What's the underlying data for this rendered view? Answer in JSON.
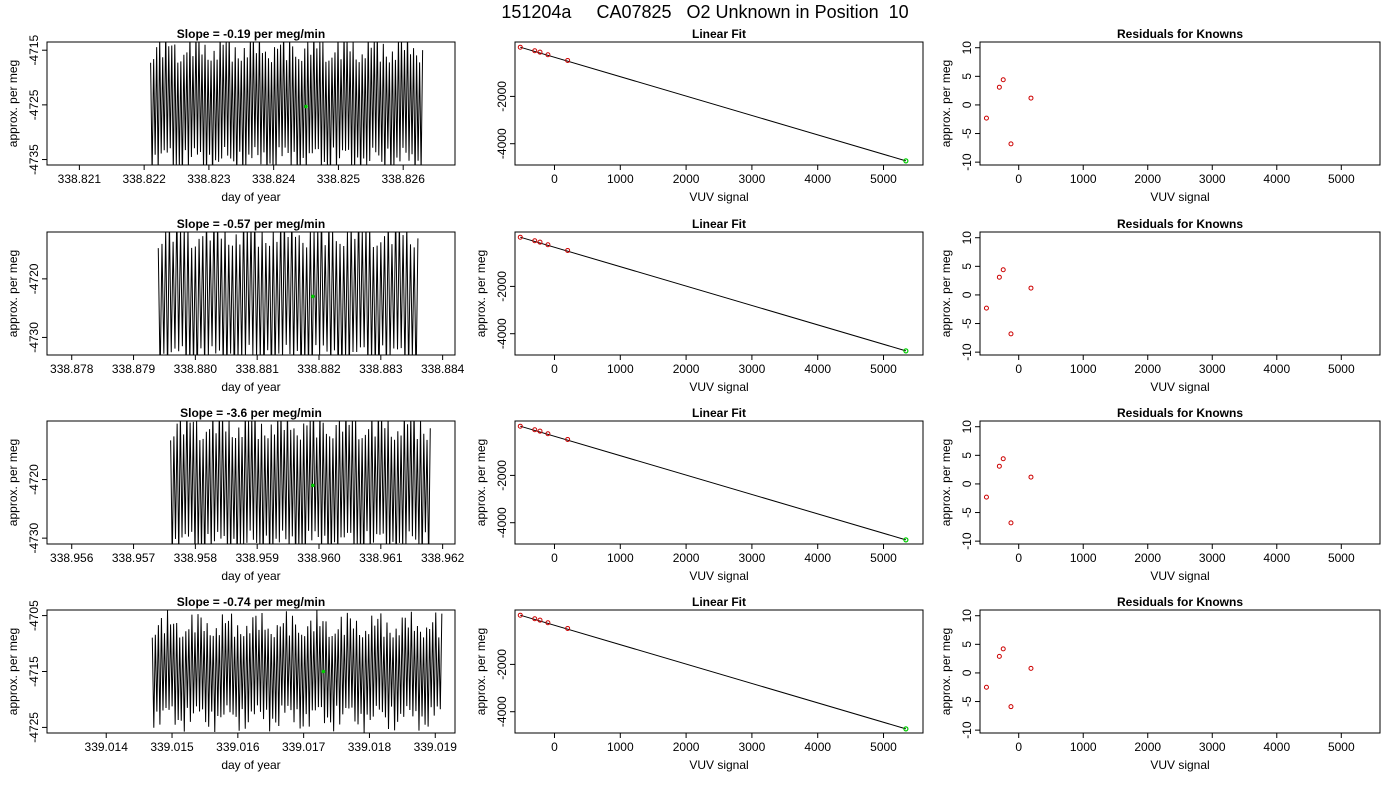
{
  "figure_title": "151204a     CA07825   O2 Unknown in Position  10",
  "colors": {
    "trace": "#000000",
    "unknown_point": "#00cc00",
    "residual_point": "#cc0000",
    "axis": "#000000"
  },
  "chart_data": [
    {
      "type": "line",
      "panel": "time-series",
      "title": "Slope =  -0.19  per meg/min",
      "xlabel": "day of year",
      "ylabel": "approx. per meg",
      "xlim": [
        338.8205,
        338.8268
      ],
      "ylim": [
        -4736,
        -4713.5
      ],
      "xticks": [
        "338.821",
        "338.822",
        "338.823",
        "338.824",
        "338.825",
        "338.826"
      ],
      "yticks": [
        "-4715",
        "-4725",
        "-4735"
      ],
      "x_range": [
        338.8221,
        338.8263
      ],
      "oscillation": {
        "center": -4725,
        "amplitude": 14,
        "cycles": 90
      },
      "unknown_mean": {
        "x": 338.8245,
        "y": -4725.3
      }
    },
    {
      "type": "scatter",
      "panel": "linear-fit",
      "title": "Linear Fit",
      "xlabel": "VUV signal",
      "ylabel": "",
      "xlim": [
        -600,
        5600
      ],
      "ylim": [
        -4900,
        300
      ],
      "xticks": [
        "0",
        "1000",
        "2000",
        "3000",
        "4000",
        "5000"
      ],
      "yticks": [
        "-2000",
        "-4000"
      ],
      "knowns": {
        "x": [
          -520,
          -300,
          -220,
          -100,
          200
        ],
        "y": [
          80,
          -70,
          -130,
          -240,
          -480
        ]
      },
      "fit_line": {
        "x": [
          -520,
          5340
        ],
        "y": [
          80,
          -4725
        ]
      },
      "unknown": {
        "x": 5340,
        "y": -4725
      }
    },
    {
      "type": "scatter",
      "panel": "residuals",
      "title": "Residuals for Knowns",
      "xlabel": "VUV signal",
      "ylabel": "approx. per meg",
      "xlim": [
        -600,
        5600
      ],
      "ylim": [
        -10.5,
        11
      ],
      "xticks": [
        "0",
        "1000",
        "2000",
        "3000",
        "4000",
        "5000"
      ],
      "yticks": [
        "10",
        "5",
        "0",
        "-5",
        "-10"
      ],
      "x": [
        -500,
        -300,
        -240,
        -120,
        190
      ],
      "y": [
        -2.3,
        3.1,
        4.4,
        -6.8,
        1.2
      ]
    },
    {
      "type": "line",
      "panel": "time-series",
      "title": "Slope =  -0.57  per meg/min",
      "xlabel": "day of year",
      "ylabel": "approx. per meg",
      "xlim": [
        338.8776,
        338.8842
      ],
      "ylim": [
        -4733,
        -4712
      ],
      "xticks": [
        "338.878",
        "338.879",
        "338.880",
        "338.881",
        "338.882",
        "338.883",
        "338.884"
      ],
      "yticks": [
        "-4720",
        "-4730"
      ],
      "x_range": [
        338.8794,
        338.8836
      ],
      "oscillation": {
        "center": -4723,
        "amplitude": 15,
        "cycles": 70
      },
      "unknown_mean": {
        "x": 338.8819,
        "y": -4723
      }
    },
    {
      "type": "scatter",
      "panel": "linear-fit",
      "title": "Linear Fit",
      "xlabel": "VUV signal",
      "ylabel": "approx. per meg",
      "xlim": [
        -600,
        5600
      ],
      "ylim": [
        -4900,
        300
      ],
      "xticks": [
        "0",
        "1000",
        "2000",
        "3000",
        "4000",
        "5000"
      ],
      "yticks": [
        "-2000",
        "-4000"
      ],
      "knowns": {
        "x": [
          -520,
          -300,
          -220,
          -100,
          200
        ],
        "y": [
          80,
          -70,
          -130,
          -240,
          -480
        ]
      },
      "fit_line": {
        "x": [
          -520,
          5340
        ],
        "y": [
          80,
          -4725
        ]
      },
      "unknown": {
        "x": 5340,
        "y": -4725
      }
    },
    {
      "type": "scatter",
      "panel": "residuals",
      "title": "Residuals for Knowns",
      "xlabel": "VUV signal",
      "ylabel": "approx. per meg",
      "xlim": [
        -600,
        5600
      ],
      "ylim": [
        -10.5,
        11
      ],
      "xticks": [
        "0",
        "1000",
        "2000",
        "3000",
        "4000",
        "5000"
      ],
      "yticks": [
        "10",
        "5",
        "0",
        "-5",
        "-10"
      ],
      "x": [
        -500,
        -300,
        -240,
        -120,
        190
      ],
      "y": [
        -2.3,
        3.1,
        4.4,
        -6.8,
        1.2
      ]
    },
    {
      "type": "line",
      "panel": "time-series",
      "title": "Slope =  -3.6  per meg/min",
      "xlabel": "day of year",
      "ylabel": "approx. per meg",
      "xlim": [
        338.9556,
        338.9622
      ],
      "ylim": [
        -4731,
        -4710
      ],
      "xticks": [
        "338.956",
        "338.957",
        "338.958",
        "338.959",
        "338.960",
        "338.961",
        "338.962"
      ],
      "yticks": [
        "-4720",
        "-4730"
      ],
      "x_range": [
        338.9576,
        338.9618
      ],
      "oscillation": {
        "center": -4721,
        "amplitude": 14,
        "cycles": 80
      },
      "unknown_mean": {
        "x": 338.9599,
        "y": -4721
      }
    },
    {
      "type": "scatter",
      "panel": "linear-fit",
      "title": "Linear Fit",
      "xlabel": "VUV signal",
      "ylabel": "approx. per meg",
      "xlim": [
        -600,
        5600
      ],
      "ylim": [
        -4900,
        300
      ],
      "xticks": [
        "0",
        "1000",
        "2000",
        "3000",
        "4000",
        "5000"
      ],
      "yticks": [
        "-2000",
        "-4000"
      ],
      "knowns": {
        "x": [
          -520,
          -300,
          -220,
          -100,
          200
        ],
        "y": [
          80,
          -70,
          -130,
          -240,
          -480
        ]
      },
      "fit_line": {
        "x": [
          -520,
          5340
        ],
        "y": [
          80,
          -4725
        ]
      },
      "unknown": {
        "x": 5340,
        "y": -4725
      }
    },
    {
      "type": "scatter",
      "panel": "residuals",
      "title": "Residuals for Knowns",
      "xlabel": "VUV signal",
      "ylabel": "approx. per meg",
      "xlim": [
        -600,
        5600
      ],
      "ylim": [
        -10.5,
        11
      ],
      "xticks": [
        "0",
        "1000",
        "2000",
        "3000",
        "4000",
        "5000"
      ],
      "yticks": [
        "10",
        "5",
        "0",
        "-5",
        "-10"
      ],
      "x": [
        -500,
        -300,
        -240,
        -120,
        190
      ],
      "y": [
        -2.3,
        3.1,
        4.4,
        -6.8,
        1.2
      ]
    },
    {
      "type": "line",
      "panel": "time-series",
      "title": "Slope =  -0.74  per meg/min",
      "xlabel": "day of year",
      "ylabel": "approx. per meg",
      "xlim": [
        339.0131,
        339.0193
      ],
      "ylim": [
        -4726,
        -4704
      ],
      "xticks": [
        "339.014",
        "339.015",
        "339.016",
        "339.017",
        "339.018",
        "339.019"
      ],
      "yticks": [
        "-4705",
        "-4715",
        "-4725"
      ],
      "x_range": [
        339.0147,
        339.0191
      ],
      "oscillation": {
        "center": -4715,
        "amplitude": 11,
        "cycles": 95
      },
      "unknown_mean": {
        "x": 339.0173,
        "y": -4715
      }
    },
    {
      "type": "scatter",
      "panel": "linear-fit",
      "title": "Linear Fit",
      "xlabel": "VUV signal",
      "ylabel": "approx. per meg",
      "xlim": [
        -600,
        5600
      ],
      "ylim": [
        -4900,
        300
      ],
      "xticks": [
        "0",
        "1000",
        "2000",
        "3000",
        "4000",
        "5000"
      ],
      "yticks": [
        "-2000",
        "-4000"
      ],
      "knowns": {
        "x": [
          -520,
          -300,
          -220,
          -100,
          200
        ],
        "y": [
          80,
          -70,
          -130,
          -240,
          -480
        ]
      },
      "fit_line": {
        "x": [
          -520,
          5340
        ],
        "y": [
          80,
          -4725
        ]
      },
      "unknown": {
        "x": 5340,
        "y": -4725
      }
    },
    {
      "type": "scatter",
      "panel": "residuals",
      "title": "Residuals for Knowns",
      "xlabel": "VUV signal",
      "ylabel": "approx. per meg",
      "xlim": [
        -600,
        5600
      ],
      "ylim": [
        -10.5,
        11
      ],
      "xticks": [
        "0",
        "1000",
        "2000",
        "3000",
        "4000",
        "5000"
      ],
      "yticks": [
        "10",
        "5",
        "0",
        "-5",
        "-10"
      ],
      "x": [
        -500,
        -300,
        -240,
        -120,
        190
      ],
      "y": [
        -2.5,
        2.9,
        4.2,
        -5.9,
        0.8
      ]
    }
  ]
}
